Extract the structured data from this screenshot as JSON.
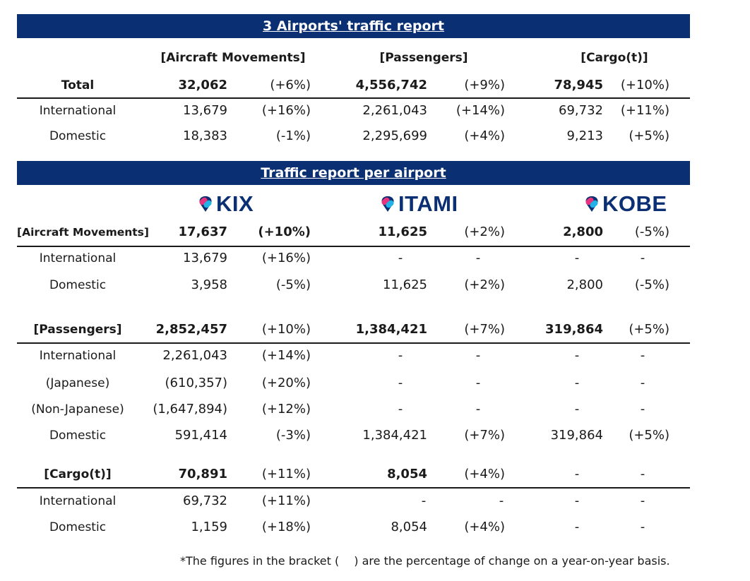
{
  "summary": {
    "title": "3 Airports' traffic report",
    "headers": {
      "aircraft": "[Aircraft Movements]",
      "passengers": "[Passengers]",
      "cargo": "[Cargo(t)]"
    },
    "rows": [
      {
        "label": "Total",
        "am": "32,062",
        "am_pct": "(+6%)",
        "px": "4,556,742",
        "px_pct": "(+9%)",
        "cg": "78,945",
        "cg_pct": "(+10%)"
      },
      {
        "label": "International",
        "am": "13,679",
        "am_pct": "(+16%)",
        "px": "2,261,043",
        "px_pct": "(+14%)",
        "cg": "69,732",
        "cg_pct": "(+11%)"
      },
      {
        "label": "Domestic",
        "am": "18,383",
        "am_pct": "(-1%)",
        "px": "2,295,699",
        "px_pct": "(+4%)",
        "cg": "9,213",
        "cg_pct": "(+5%)"
      }
    ]
  },
  "per_airport": {
    "title": "Traffic report per airport",
    "logos": {
      "kix": {
        "text": "KIX",
        "icon": "airport-logo-mark-icon"
      },
      "itami": {
        "text": "ITAMI",
        "icon": "airport-logo-mark-icon"
      },
      "kobe": {
        "text": "KOBE",
        "icon": "airport-logo-mark-icon"
      }
    },
    "aircraft": {
      "header": "[Aircraft Movements]",
      "total": {
        "kix": "17,637",
        "kix_pct": "(+10%)",
        "itami": "11,625",
        "itami_pct": "(+2%)",
        "kobe": "2,800",
        "kobe_pct": "(-5%)"
      },
      "rows": [
        {
          "label": "International",
          "kix": "13,679",
          "kix_pct": "(+16%)",
          "itami": "-",
          "itami_pct": "-",
          "kobe": "-",
          "kobe_pct": "-"
        },
        {
          "label": "Domestic",
          "kix": "3,958",
          "kix_pct": "(-5%)",
          "itami": "11,625",
          "itami_pct": "(+2%)",
          "kobe": "2,800",
          "kobe_pct": "(-5%)"
        }
      ]
    },
    "passengers": {
      "header": "[Passengers]",
      "total": {
        "kix": "2,852,457",
        "kix_pct": "(+10%)",
        "itami": "1,384,421",
        "itami_pct": "(+7%)",
        "kobe": "319,864",
        "kobe_pct": "(+5%)"
      },
      "rows": [
        {
          "label": "International",
          "kix": "2,261,043",
          "kix_pct": "(+14%)",
          "itami": "-",
          "itami_pct": "-",
          "kobe": "-",
          "kobe_pct": "-"
        },
        {
          "label": "(Japanese)",
          "kix": "(610,357)",
          "kix_pct": "(+20%)",
          "itami": "-",
          "itami_pct": "-",
          "kobe": "-",
          "kobe_pct": "-"
        },
        {
          "label": "(Non-Japanese)",
          "kix": "(1,647,894)",
          "kix_pct": "(+12%)",
          "itami": "-",
          "itami_pct": "-",
          "kobe": "-",
          "kobe_pct": "-"
        },
        {
          "label": "Domestic",
          "kix": "591,414",
          "kix_pct": "(-3%)",
          "itami": "1,384,421",
          "itami_pct": "(+7%)",
          "kobe": "319,864",
          "kobe_pct": "(+5%)"
        }
      ]
    },
    "cargo": {
      "header": "[Cargo(t)]",
      "total": {
        "kix": "70,891",
        "kix_pct": "(+11%)",
        "itami": "8,054",
        "itami_pct": "(+4%)",
        "kobe": "-",
        "kobe_pct": "-"
      },
      "rows": [
        {
          "label": "International",
          "kix": "69,732",
          "kix_pct": "(+11%)",
          "itami": "-",
          "itami_pct": "-",
          "kobe": "-",
          "kobe_pct": "-"
        },
        {
          "label": "Domestic",
          "kix": "1,159",
          "kix_pct": "(+18%)",
          "itami": "8,054",
          "itami_pct": "(+4%)",
          "kobe": "-",
          "kobe_pct": "-"
        }
      ]
    }
  },
  "footnote": "*The figures in the bracket (　 ) are the percentage of change on a year-on-year basis.",
  "colors": {
    "banner": "#0b2f73",
    "logo_text": "#0b2f73",
    "logo_pink": "#e8337e",
    "logo_cyan": "#22b2e6"
  }
}
